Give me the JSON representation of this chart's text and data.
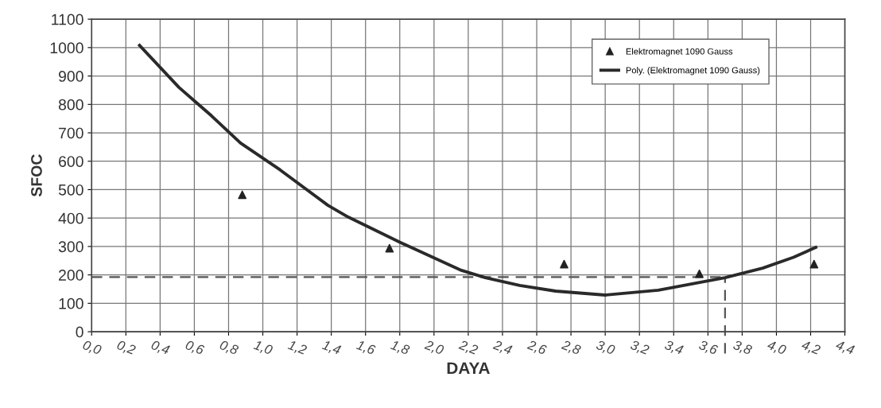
{
  "chart_data": {
    "type": "scatter",
    "xlabel": "DAYA",
    "ylabel": "SFOC",
    "series": [
      {
        "name": "Elektromagnet 1090 Gauss",
        "marker": "triangle",
        "color": "#222222",
        "x": [
          0.88,
          1.74,
          2.76,
          3.55,
          4.22
        ],
        "values": [
          482,
          294,
          238,
          204,
          238
        ]
      },
      {
        "name": "Poly. (Elektromagnet 1090 Gauss)",
        "type": "line",
        "marker": "none",
        "color": "#2a2a2a",
        "x": [
          0.28,
          0.51,
          0.7,
          0.87,
          1.1,
          1.38,
          1.5,
          1.8,
          2.16,
          2.3,
          2.5,
          2.71,
          3.0,
          3.31,
          3.7,
          3.92,
          4.1,
          4.23
        ],
        "values": [
          1008,
          860,
          760,
          664,
          570,
          445,
          403,
          315,
          216,
          190,
          163,
          143,
          129,
          146,
          190,
          224,
          262,
          297
        ]
      }
    ],
    "ref_lines": [
      {
        "axis": "y",
        "value": 192,
        "color": "#555555",
        "line_style": "dashed"
      },
      {
        "axis": "x",
        "value": 3.7,
        "color": "#555555",
        "line_style": "dashed"
      }
    ],
    "xlim": [
      0,
      4.4
    ],
    "ylim": [
      0,
      1100
    ],
    "xticks": [
      {
        "value": 0,
        "label": "0,0"
      },
      {
        "value": 0.2,
        "label": "0,2"
      },
      {
        "value": 0.4,
        "label": "0,4"
      },
      {
        "value": 0.6,
        "label": "0,6"
      },
      {
        "value": 0.8,
        "label": "0,8"
      },
      {
        "value": 1.0,
        "label": "1,0"
      },
      {
        "value": 1.2,
        "label": "1,2"
      },
      {
        "value": 1.4,
        "label": "1,4"
      },
      {
        "value": 1.6,
        "label": "1,6"
      },
      {
        "value": 1.8,
        "label": "1,8"
      },
      {
        "value": 2.0,
        "label": "2,0"
      },
      {
        "value": 2.2,
        "label": "2,2"
      },
      {
        "value": 2.4,
        "label": "2,4"
      },
      {
        "value": 2.6,
        "label": "2,6"
      },
      {
        "value": 2.8,
        "label": "2,8"
      },
      {
        "value": 3.0,
        "label": "3,0"
      },
      {
        "value": 3.2,
        "label": "3,2"
      },
      {
        "value": 3.4,
        "label": "3,4"
      },
      {
        "value": 3.6,
        "label": "3,6"
      },
      {
        "value": 3.8,
        "label": "3,8"
      },
      {
        "value": 4.0,
        "label": "4,0"
      },
      {
        "value": 4.2,
        "label": "4,2"
      },
      {
        "value": 4.4,
        "label": "4,4"
      }
    ],
    "yticks": [
      0,
      100,
      200,
      300,
      400,
      500,
      600,
      700,
      800,
      900,
      1000,
      1100
    ],
    "grid": true,
    "legend": "top right"
  }
}
